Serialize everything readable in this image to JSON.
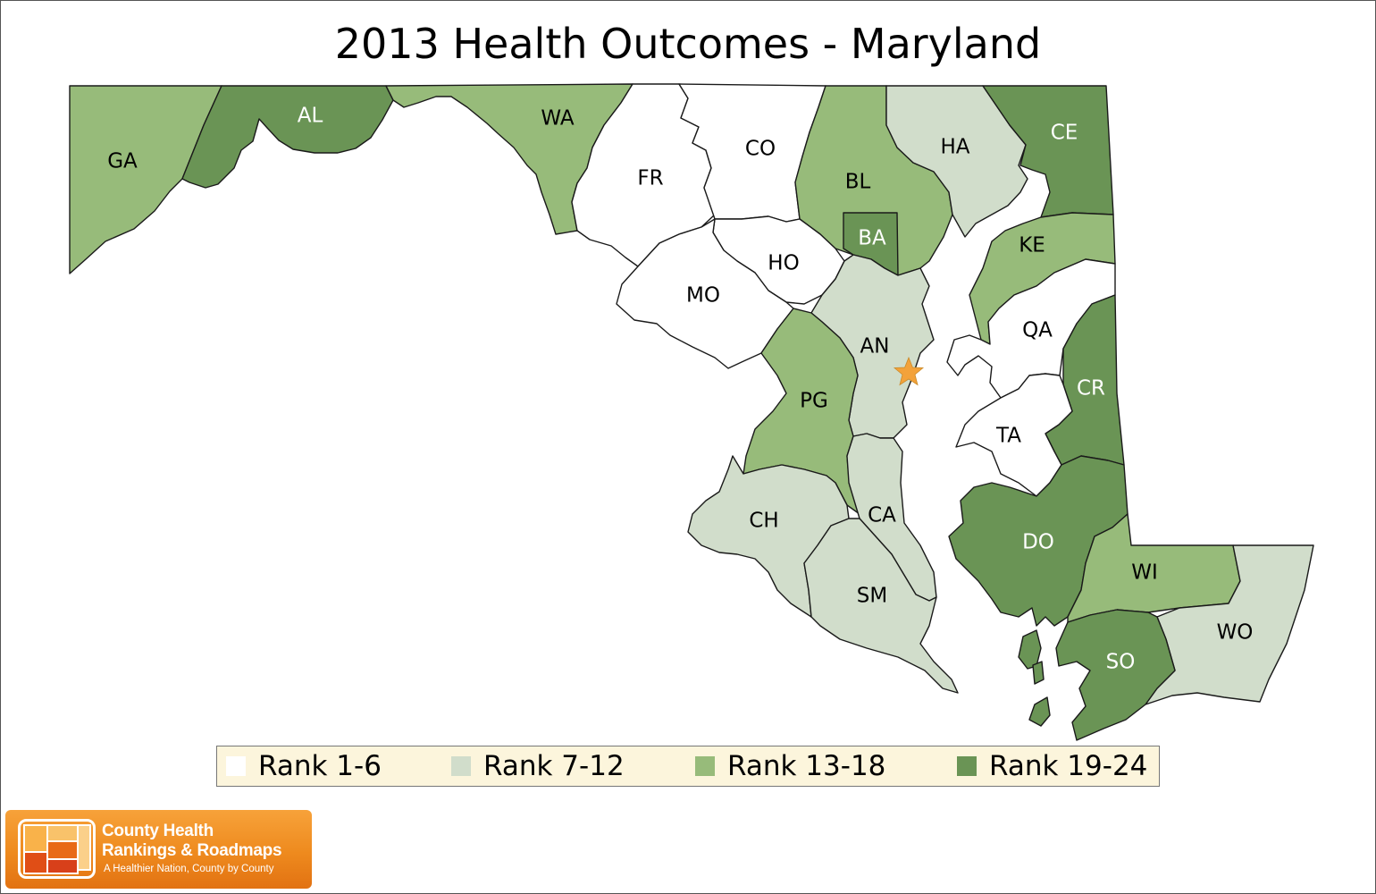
{
  "title": "2013 Health Outcomes - Maryland",
  "colors": {
    "rank_1_6": "#ffffff",
    "rank_7_12": "#d1ddcb",
    "rank_13_18": "#97bb7a",
    "rank_19_24": "#6a9455",
    "star": "#f3a23a",
    "legend_bg": "#fcf5dc"
  },
  "legend": [
    {
      "label": "Rank 1-6",
      "color": "#ffffff"
    },
    {
      "label": "Rank 7-12",
      "color": "#d1ddcb"
    },
    {
      "label": "Rank 13-18",
      "color": "#97bb7a"
    },
    {
      "label": "Rank 19-24",
      "color": "#6a9455"
    }
  ],
  "counties": [
    {
      "abbr": "GA",
      "rank_group": "Rank 13-18"
    },
    {
      "abbr": "AL",
      "rank_group": "Rank 19-24"
    },
    {
      "abbr": "WA",
      "rank_group": "Rank 13-18"
    },
    {
      "abbr": "FR",
      "rank_group": "Rank 1-6"
    },
    {
      "abbr": "CO",
      "rank_group": "Rank 1-6"
    },
    {
      "abbr": "BL",
      "rank_group": "Rank 13-18"
    },
    {
      "abbr": "HA",
      "rank_group": "Rank 7-12"
    },
    {
      "abbr": "CE",
      "rank_group": "Rank 19-24"
    },
    {
      "abbr": "BA",
      "rank_group": "Rank 19-24"
    },
    {
      "abbr": "HO",
      "rank_group": "Rank 1-6"
    },
    {
      "abbr": "MO",
      "rank_group": "Rank 1-6"
    },
    {
      "abbr": "KE",
      "rank_group": "Rank 13-18"
    },
    {
      "abbr": "QA",
      "rank_group": "Rank 1-6"
    },
    {
      "abbr": "AN",
      "rank_group": "Rank 7-12"
    },
    {
      "abbr": "PG",
      "rank_group": "Rank 13-18"
    },
    {
      "abbr": "CR",
      "rank_group": "Rank 19-24"
    },
    {
      "abbr": "TA",
      "rank_group": "Rank 1-6"
    },
    {
      "abbr": "CH",
      "rank_group": "Rank 7-12"
    },
    {
      "abbr": "CA",
      "rank_group": "Rank 7-12"
    },
    {
      "abbr": "DO",
      "rank_group": "Rank 19-24"
    },
    {
      "abbr": "SM",
      "rank_group": "Rank 7-12"
    },
    {
      "abbr": "WI",
      "rank_group": "Rank 13-18"
    },
    {
      "abbr": "WO",
      "rank_group": "Rank 7-12"
    },
    {
      "abbr": "SO",
      "rank_group": "Rank 19-24"
    }
  ],
  "logo": {
    "line1": "County Health",
    "line2": "Rankings & Roadmaps",
    "tagline": "A Healthier Nation, County by County"
  }
}
